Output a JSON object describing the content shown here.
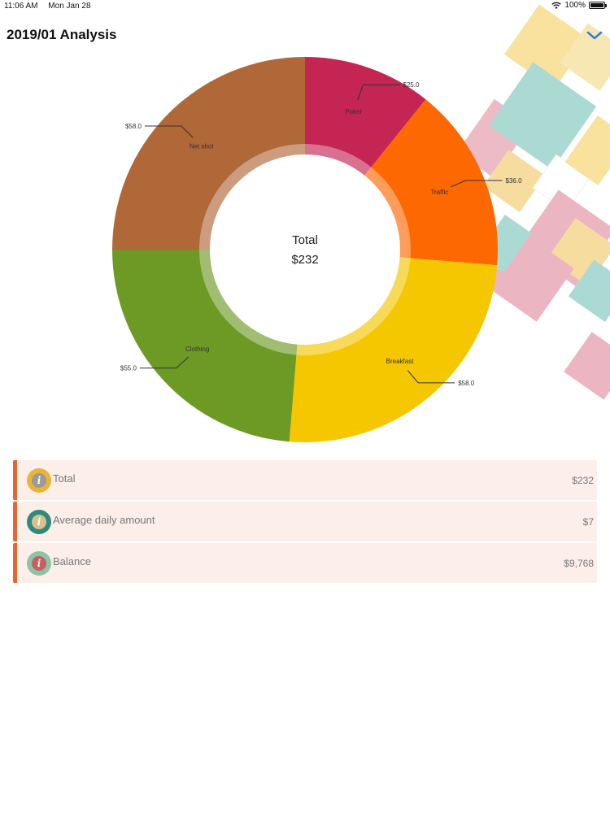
{
  "status_bar": {
    "time": "11:06 AM",
    "date": "Mon Jan 28",
    "battery": "100%"
  },
  "header": {
    "title": "2019/01 Analysis"
  },
  "chart_data": {
    "type": "pie",
    "center": {
      "title": "Total",
      "amount": "$232"
    },
    "slices": [
      {
        "label": "Poker",
        "value": 25.0,
        "value_label": "$25.0",
        "color": "#c42553"
      },
      {
        "label": "Traffic",
        "value": 36.0,
        "value_label": "$36.0",
        "color": "#fd6800"
      },
      {
        "label": "Breakfast",
        "value": 58.0,
        "value_label": "$58.0",
        "color": "#f5c700"
      },
      {
        "label": "Clothing",
        "value": 55.0,
        "value_label": "$55.0",
        "color": "#6d9a25"
      },
      {
        "label": "Net shot",
        "value": 58.0,
        "value_label": "$58.0",
        "color": "#b06839"
      }
    ]
  },
  "summary": {
    "rows": [
      {
        "label": "Total",
        "value": "$232",
        "icon": "info-icon",
        "icon_color": "#e8b43a",
        "icon_inner": "#9a9a9a"
      },
      {
        "label": "Average daily amount",
        "value": "$7",
        "icon": "info-icon",
        "icon_color": "#2f8a7c",
        "icon_inner": "#d8c28c"
      },
      {
        "label": "Balance",
        "value": "$9,768",
        "icon": "info-icon",
        "icon_color": "#8ec4a4",
        "icon_inner": "#c65f5f"
      }
    ]
  }
}
